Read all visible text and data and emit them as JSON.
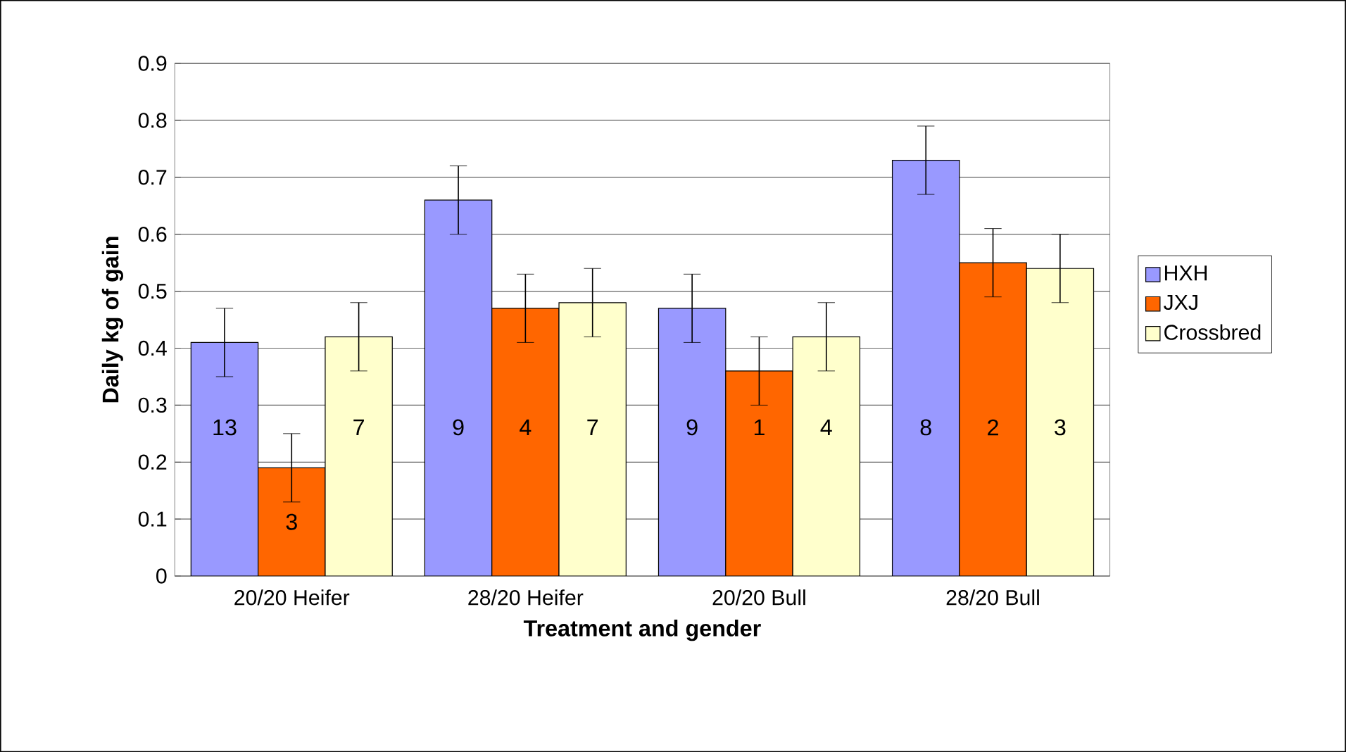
{
  "chart_data": {
    "type": "bar",
    "xlabel": "Treatment and gender",
    "ylabel": "Daily kg of gain",
    "categories": [
      "20/20 Heifer",
      "28/20 Heifer",
      "20/20 Bull",
      "28/20 Bull"
    ],
    "series": [
      {
        "name": "HXH",
        "color": "#9999ff",
        "values": [
          0.41,
          0.66,
          0.47,
          0.73
        ],
        "errors": [
          0.06,
          0.06,
          0.06,
          0.06
        ]
      },
      {
        "name": "JXJ",
        "color": "#ff6600",
        "values": [
          0.19,
          0.47,
          0.36,
          0.55
        ],
        "errors": [
          0.06,
          0.06,
          0.06,
          0.06
        ]
      },
      {
        "name": "Crossbred",
        "color": "#ffffcc",
        "values": [
          0.42,
          0.48,
          0.42,
          0.54
        ],
        "errors": [
          0.06,
          0.06,
          0.06,
          0.06
        ]
      }
    ],
    "ylim": [
      0,
      0.9
    ],
    "yticks": [
      0,
      0.1,
      0.2,
      0.3,
      0.4,
      0.5,
      0.6,
      0.7,
      0.8,
      0.9
    ],
    "grid": "y",
    "legend": "right",
    "annotations": [
      "13",
      "3",
      "7",
      "9",
      "4",
      "7",
      "9",
      "1",
      "4",
      "8",
      "2",
      "3"
    ]
  }
}
